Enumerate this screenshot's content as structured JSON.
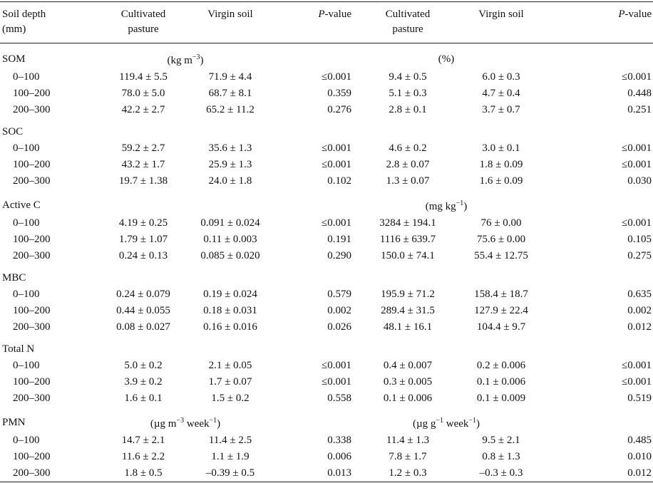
{
  "header": {
    "depth_line1": "Soil depth",
    "depth_line2": "(mm)",
    "cult_line1": "Cultivated",
    "cult_line2": "pasture",
    "virgin": "Virgin soil",
    "p_italic": "P",
    "p_rest": "-value"
  },
  "groups": [
    {
      "name": "SOM",
      "unit_left": "(kg m−3)",
      "unit_right": "(%)",
      "rows": [
        [
          "0–100",
          "119.4 ± 5.5",
          "71.9 ± 4.4",
          "≤0.001",
          "9.4 ± 0.5",
          "6.0 ± 0.3",
          "≤0.001"
        ],
        [
          "100–200",
          "78.0 ± 5.0",
          "68.7 ± 8.1",
          "0.359",
          "5.1 ± 0.3",
          "4.7 ± 0.4",
          "0.448"
        ],
        [
          "200–300",
          "42.2 ± 2.7",
          "65.2 ± 11.2",
          "0.276",
          "2.8 ± 0.1",
          "3.7 ± 0.7",
          "0.251"
        ]
      ]
    },
    {
      "name": "SOC",
      "unit_left": "",
      "unit_right": "",
      "rows": [
        [
          "0–100",
          "59.2 ± 2.7",
          "35.6 ± 1.3",
          "≤0.001",
          "4.6 ± 0.2",
          "3.0 ± 0.1",
          "≤0.001"
        ],
        [
          "100–200",
          "43.2 ± 1.7",
          "25.9 ± 1.3",
          "≤0.001",
          "2.8 ± 0.07",
          "1.8 ± 0.09",
          "≤0.001"
        ],
        [
          "200–300",
          "19.7 ± 1.38",
          "24.0 ± 1.8",
          "0.102",
          "1.3 ± 0.07",
          "1.6 ± 0.09",
          "0.030"
        ]
      ]
    },
    {
      "name": "Active C",
      "unit_left": "",
      "unit_right": "(mg kg−1)",
      "rows": [
        [
          "0–100",
          "4.19 ± 0.25",
          "0.091 ± 0.024",
          "≤0.001",
          "3284 ± 194.1",
          "76 ± 0.00",
          "≤0.001"
        ],
        [
          "100–200",
          "1.79 ± 1.07",
          "0.11 ± 0.003",
          "0.191",
          "1116 ± 639.7",
          "75.6 ± 0.00",
          "0.105"
        ],
        [
          "200–300",
          "0.24 ± 0.13",
          "0.085 ± 0.020",
          "0.290",
          "150.0 ± 74.1",
          "55.4 ± 12.75",
          "0.275"
        ]
      ]
    },
    {
      "name": "MBC",
      "unit_left": "",
      "unit_right": "",
      "rows": [
        [
          "0–100",
          "0.24 ± 0.079",
          "0.19 ± 0.024",
          "0.579",
          "195.9 ± 71.2",
          "158.4 ± 18.7",
          "0.635"
        ],
        [
          "100–200",
          "0.44 ± 0.055",
          "0.18 ± 0.031",
          "0.002",
          "289.4 ± 31.5",
          "127.9 ± 22.4",
          "0.002"
        ],
        [
          "200–300",
          "0.08 ± 0.027",
          "0.16 ± 0.016",
          "0.026",
          "48.1 ± 16.1",
          "104.4 ± 9.7",
          "0.012"
        ]
      ]
    },
    {
      "name": "Total N",
      "unit_left": "",
      "unit_right": "",
      "rows": [
        [
          "0–100",
          "5.0 ± 0.2",
          "2.1 ± 0.05",
          "≤0.001",
          "0.4 ± 0.007",
          "0.2 ± 0.006",
          "≤0.001"
        ],
        [
          "100–200",
          "3.9 ± 0.2",
          "1.7 ± 0.07",
          "≤0.001",
          "0.3 ± 0.005",
          "0.1 ± 0.006",
          "≤0.001"
        ],
        [
          "200–300",
          "1.6 ± 0.1",
          "1.5 ± 0.2",
          "0.558",
          "0.1 ± 0.006",
          "0.1 ± 0.009",
          "0.519"
        ]
      ]
    },
    {
      "name": "PMN",
      "unit_left": "(µg m−3 week−1)",
      "unit_right": "(µg g−1 week−1)",
      "rows": [
        [
          "0–100",
          "14.7 ± 2.1",
          "11.4 ± 2.5",
          "0.338",
          "11.4 ± 1.3",
          "9.5 ± 2.1",
          "0.485"
        ],
        [
          "100–200",
          "11.6 ± 2.2",
          "1.1 ± 1.9",
          "0.006",
          "7.8 ± 1.7",
          "0.8 ± 1.3",
          "0.010"
        ],
        [
          "200–300",
          "1.8 ± 0.5",
          "–0.39 ± 0.5",
          "0.013",
          "1.2 ± 0.3",
          "–0.3 ± 0.3",
          "0.012"
        ]
      ]
    }
  ]
}
